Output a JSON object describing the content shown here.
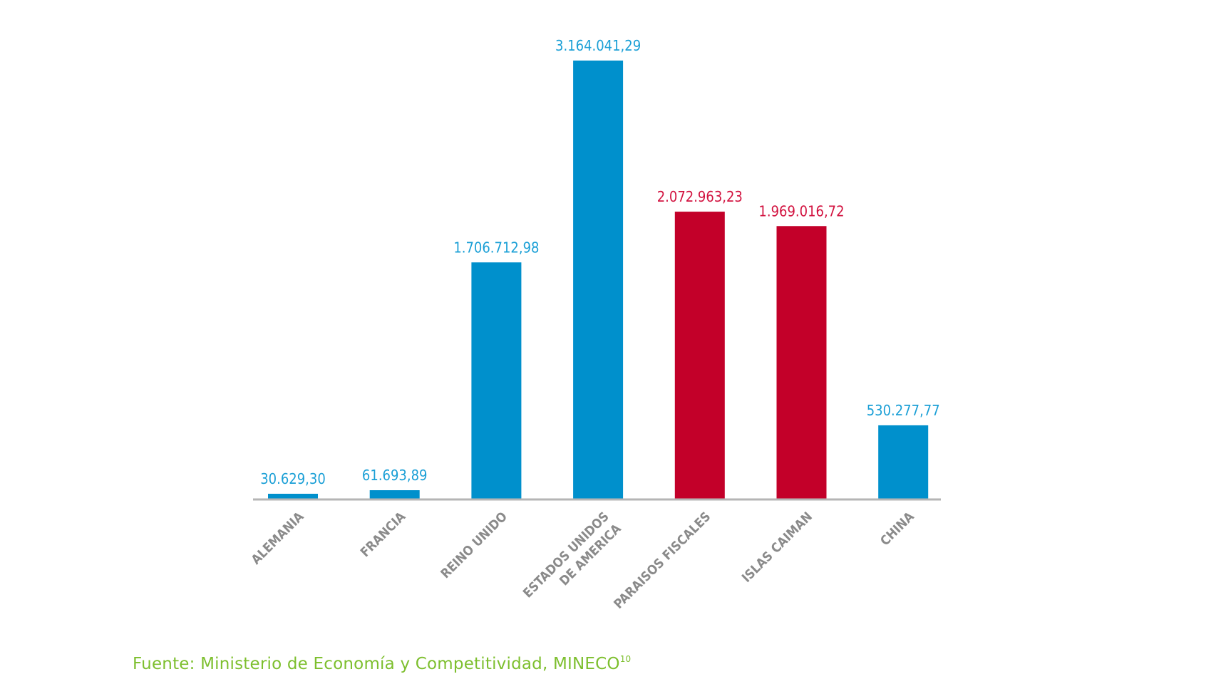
{
  "chart_data": {
    "type": "bar",
    "categories": [
      {
        "lines": [
          "ALEMANIA"
        ]
      },
      {
        "lines": [
          "FRANCIA"
        ]
      },
      {
        "lines": [
          "REINO UNIDO"
        ]
      },
      {
        "lines": [
          "ESTADOS UNIDOS",
          "DE AMERICA"
        ]
      },
      {
        "lines": [
          "PARAISOS FISCALES"
        ]
      },
      {
        "lines": [
          "ISLAS CAIMAN"
        ]
      },
      {
        "lines": [
          "CHINA"
        ]
      }
    ],
    "values": [
      30629.3,
      61693.89,
      1706712.98,
      3164041.29,
      2072963.23,
      1969016.72,
      530277.77
    ],
    "value_labels": [
      "30.629,30",
      "61.693,89",
      "1.706.712,98",
      "3.164.041,29",
      "2.072.963,23",
      "1.969.016,72",
      "530.277,77"
    ],
    "highlight": [
      false,
      false,
      false,
      false,
      true,
      true,
      false
    ],
    "ylim": [
      0,
      3164041.29
    ],
    "title": "",
    "xlabel": "",
    "ylabel": "",
    "grid": false
  },
  "colors": {
    "bar_default": "#0090cc",
    "bar_highlight": "#c30029",
    "label_default": "#1a9fd6",
    "label_highlight": "#d2123f",
    "axis": "#b5b5b5",
    "category": "#8a8a8a",
    "source": "#7dbf2e"
  },
  "source": {
    "text": "Fuente: Ministerio de Economía y Competitividad, MINECO",
    "superscript": "10"
  }
}
